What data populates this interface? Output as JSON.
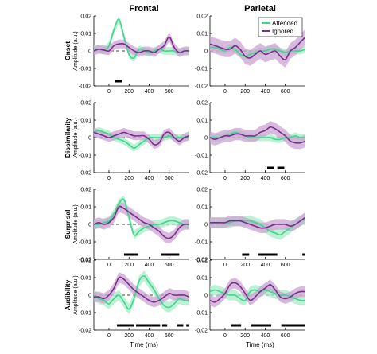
{
  "chart_data": {
    "type": "line",
    "columns": [
      "Frontal",
      "Parietal"
    ],
    "rows": [
      "Onset",
      "Dissimilarity",
      "Surprisal",
      "Audibility"
    ],
    "ylabel": "Amplitude (a.u.)",
    "xlabel": "Time (ms)",
    "xlim": [
      -150,
      800
    ],
    "ylim": [
      -0.02,
      0.02
    ],
    "xticks": [
      0,
      200,
      400,
      600
    ],
    "yticks": [
      -0.02,
      -0.01,
      0,
      0.01,
      0.02
    ],
    "ytick_labels": [
      "-0.02",
      "-0.01",
      "0",
      "0.01",
      "0.02"
    ],
    "legend": {
      "position": "top-right",
      "panel": "Parietal-Onset",
      "entries": [
        {
          "name": "Attended",
          "color": "#3dd68c"
        },
        {
          "name": "Ignored",
          "color": "#7b2d8e"
        }
      ]
    },
    "colors": {
      "attended": "#3dd68c",
      "ignored": "#7b2d8e",
      "attended_band": "#a6ecc8",
      "ignored_band": "#c9a3d2"
    },
    "panels": [
      {
        "row": "Onset",
        "col": "Frontal",
        "series": [
          {
            "name": "Attended",
            "x": [
              -150,
              -100,
              -50,
              0,
              50,
              100,
              150,
              200,
              250,
              300,
              350,
              400,
              450,
              500,
              550,
              600,
              650,
              700,
              750,
              800
            ],
            "y": [
              0.001,
              0.001,
              0.0005,
              0.003,
              0.012,
              0.018,
              0.008,
              -0.002,
              -0.004,
              0.001,
              0.0,
              -0.001,
              0.0,
              0.001,
              0.0,
              0.0,
              0.0,
              -0.001,
              0.0,
              0.0
            ],
            "band": 0.0022
          },
          {
            "name": "Ignored",
            "x": [
              -150,
              -100,
              -50,
              0,
              50,
              100,
              150,
              200,
              250,
              300,
              350,
              400,
              450,
              500,
              550,
              600,
              650,
              700,
              750,
              800
            ],
            "y": [
              0.0,
              0.001,
              0.0005,
              0.0,
              0.003,
              0.004,
              0.004,
              0.002,
              0.0,
              -0.001,
              0.0,
              0.0,
              -0.001,
              0.001,
              0.003,
              0.008,
              0.002,
              -0.001,
              0.0,
              0.0
            ],
            "band": 0.0025
          }
        ],
        "sig": [
          [
            60,
            130
          ]
        ]
      },
      {
        "row": "Onset",
        "col": "Parietal",
        "series": [
          {
            "name": "Attended",
            "x": [
              -150,
              -100,
              -50,
              0,
              50,
              100,
              150,
              200,
              250,
              300,
              350,
              400,
              450,
              500,
              550,
              600,
              650,
              700,
              750,
              800
            ],
            "y": [
              0.002,
              0.002,
              0.001,
              0.0,
              0.002,
              0.001,
              -0.002,
              -0.003,
              -0.002,
              -0.001,
              0.0,
              0.0,
              0.001,
              0.001,
              0.0,
              -0.001,
              0.0,
              0.0,
              0.0,
              0.001
            ],
            "band": 0.002
          },
          {
            "name": "Ignored",
            "x": [
              -150,
              -100,
              -50,
              0,
              50,
              100,
              150,
              200,
              250,
              300,
              350,
              400,
              450,
              500,
              550,
              600,
              650,
              700,
              750,
              800
            ],
            "y": [
              0.004,
              0.003,
              0.002,
              0.001,
              0.001,
              0.003,
              0.001,
              -0.003,
              -0.004,
              -0.002,
              0.0,
              -0.002,
              -0.001,
              0.0,
              -0.003,
              -0.005,
              0.0,
              0.002,
              0.005,
              0.008
            ],
            "band": 0.0045
          }
        ],
        "sig": []
      },
      {
        "row": "Dissimilarity",
        "col": "Frontal",
        "series": [
          {
            "name": "Attended",
            "x": [
              -150,
              -100,
              -50,
              0,
              50,
              100,
              150,
              200,
              250,
              300,
              350,
              400,
              450,
              500,
              550,
              600,
              650,
              700,
              750,
              800
            ],
            "y": [
              0.003,
              0.004,
              0.003,
              0.002,
              0.0,
              -0.001,
              -0.002,
              -0.004,
              -0.006,
              -0.004,
              -0.002,
              0.0,
              0.0,
              0.0,
              0.0,
              0.001,
              0.0,
              0.0,
              0.0,
              0.0
            ],
            "band": 0.002
          },
          {
            "name": "Ignored",
            "x": [
              -150,
              -100,
              -50,
              0,
              50,
              100,
              150,
              200,
              250,
              300,
              350,
              400,
              450,
              500,
              550,
              600,
              650,
              700,
              750,
              800
            ],
            "y": [
              0.003,
              0.002,
              0.001,
              0.0,
              0.001,
              0.002,
              0.003,
              0.002,
              0.001,
              0.001,
              0.001,
              -0.001,
              -0.004,
              -0.003,
              0.002,
              0.003,
              0.0,
              -0.002,
              0.0,
              0.001
            ],
            "band": 0.0025
          }
        ],
        "sig": []
      },
      {
        "row": "Dissimilarity",
        "col": "Parietal",
        "series": [
          {
            "name": "Attended",
            "x": [
              -150,
              -100,
              -50,
              0,
              50,
              100,
              150,
              200,
              250,
              300,
              350,
              400,
              450,
              500,
              550,
              600,
              650,
              700,
              750,
              800
            ],
            "y": [
              0.0,
              0.0,
              0.0,
              0.001,
              0.002,
              0.003,
              0.002,
              0.001,
              0.0,
              0.0,
              0.0,
              0.0,
              0.0,
              -0.001,
              -0.001,
              0.0,
              0.0,
              0.001,
              0.0,
              0.0
            ],
            "band": 0.002
          },
          {
            "name": "Ignored",
            "x": [
              -150,
              -100,
              -50,
              0,
              50,
              100,
              150,
              200,
              250,
              300,
              350,
              400,
              450,
              500,
              550,
              600,
              650,
              700,
              750,
              800
            ],
            "y": [
              0.0,
              -0.001,
              0.0,
              0.001,
              0.001,
              0.002,
              0.002,
              0.001,
              0.001,
              0.001,
              0.003,
              0.004,
              0.006,
              0.005,
              0.003,
              0.001,
              -0.002,
              -0.003,
              -0.003,
              -0.002
            ],
            "band": 0.0035
          }
        ],
        "sig": [
          [
            420,
            490
          ],
          [
            520,
            590
          ]
        ]
      },
      {
        "row": "Surprisal",
        "col": "Frontal",
        "series": [
          {
            "name": "Attended",
            "x": [
              -150,
              -100,
              -50,
              0,
              50,
              100,
              150,
              200,
              250,
              300,
              350,
              400,
              450,
              500,
              550,
              600,
              650,
              700,
              750,
              800
            ],
            "y": [
              0.0,
              0.0,
              0.001,
              0.002,
              0.006,
              0.012,
              0.014,
              0.004,
              -0.006,
              -0.004,
              -0.002,
              -0.001,
              0.0,
              0.0,
              0.001,
              0.002,
              0.002,
              0.001,
              0.0,
              0.0
            ],
            "band": 0.0025
          },
          {
            "name": "Ignored",
            "x": [
              -150,
              -100,
              -50,
              0,
              50,
              100,
              150,
              200,
              250,
              300,
              350,
              400,
              450,
              500,
              550,
              600,
              650,
              700,
              750,
              800
            ],
            "y": [
              0.0,
              0.001,
              0.0,
              0.001,
              0.004,
              0.01,
              0.009,
              0.007,
              0.005,
              0.003,
              0.001,
              0.0,
              -0.002,
              -0.004,
              -0.007,
              -0.008,
              -0.006,
              -0.002,
              0.0,
              0.0
            ],
            "band": 0.003
          }
        ],
        "sig": [
          [
            150,
            290
          ],
          [
            520,
            700
          ]
        ]
      },
      {
        "row": "Surprisal",
        "col": "Parietal",
        "series": [
          {
            "name": "Attended",
            "x": [
              -150,
              -100,
              -50,
              0,
              50,
              100,
              150,
              200,
              250,
              300,
              350,
              400,
              450,
              500,
              550,
              600,
              650,
              700,
              750,
              800
            ],
            "y": [
              0.001,
              0.001,
              0.001,
              0.001,
              0.001,
              0.002,
              0.002,
              0.002,
              0.002,
              0.001,
              0.0,
              -0.002,
              -0.004,
              -0.005,
              -0.006,
              -0.004,
              -0.002,
              0.0,
              0.002,
              0.003
            ],
            "band": 0.003
          },
          {
            "name": "Ignored",
            "x": [
              -150,
              -100,
              -50,
              0,
              50,
              100,
              150,
              200,
              250,
              300,
              350,
              400,
              450,
              500,
              550,
              600,
              650,
              700,
              750,
              800
            ],
            "y": [
              0.001,
              0.001,
              0.001,
              0.001,
              0.002,
              0.002,
              0.002,
              0.001,
              0.0,
              -0.001,
              -0.002,
              -0.002,
              -0.001,
              0.0,
              0.0,
              0.0,
              -0.001,
              0.0,
              0.002,
              0.004
            ],
            "band": 0.003
          }
        ],
        "sig": [
          [
            170,
            240
          ],
          [
            330,
            520
          ],
          [
            770,
            800
          ]
        ]
      },
      {
        "row": "Audibility",
        "col": "Frontal",
        "series": [
          {
            "name": "Attended",
            "x": [
              -150,
              -100,
              -50,
              0,
              50,
              100,
              150,
              200,
              250,
              300,
              350,
              400,
              450,
              500,
              550,
              600,
              650,
              700,
              750,
              800
            ],
            "y": [
              0.0,
              -0.002,
              -0.003,
              -0.005,
              -0.002,
              0.0,
              -0.004,
              -0.008,
              -0.002,
              0.008,
              0.011,
              0.007,
              0.003,
              -0.002,
              -0.006,
              -0.007,
              -0.005,
              -0.002,
              -0.003,
              -0.003
            ],
            "band": 0.003
          },
          {
            "name": "Ignored",
            "x": [
              -150,
              -100,
              -50,
              0,
              50,
              100,
              150,
              200,
              250,
              300,
              350,
              400,
              450,
              500,
              550,
              600,
              650,
              700,
              750,
              800
            ],
            "y": [
              -0.001,
              -0.001,
              -0.002,
              0.0,
              0.004,
              0.01,
              0.009,
              0.006,
              0.003,
              0.001,
              -0.001,
              -0.003,
              -0.004,
              -0.003,
              -0.001,
              0.001,
              0.0,
              0.0,
              0.0,
              -0.001
            ],
            "band": 0.003
          }
        ],
        "sig": [
          [
            80,
            250
          ],
          [
            270,
            510
          ],
          [
            530,
            580
          ],
          [
            680,
            740
          ],
          [
            770,
            800
          ]
        ]
      },
      {
        "row": "Audibility",
        "col": "Parietal",
        "series": [
          {
            "name": "Attended",
            "x": [
              -150,
              -100,
              -50,
              0,
              50,
              100,
              150,
              200,
              250,
              300,
              350,
              400,
              450,
              500,
              550,
              600,
              650,
              700,
              750,
              800
            ],
            "y": [
              0.002,
              0.003,
              0.002,
              0.001,
              0.0,
              0.0,
              -0.002,
              -0.003,
              0.002,
              0.003,
              0.002,
              0.003,
              0.002,
              0.001,
              0.0,
              0.0,
              -0.001,
              -0.002,
              -0.003,
              -0.003
            ],
            "band": 0.003
          },
          {
            "name": "Ignored",
            "x": [
              -150,
              -100,
              -50,
              0,
              50,
              100,
              150,
              200,
              250,
              300,
              350,
              400,
              450,
              500,
              550,
              600,
              650,
              700,
              750,
              800
            ],
            "y": [
              -0.003,
              -0.004,
              -0.002,
              0.001,
              0.006,
              0.007,
              0.005,
              0.001,
              -0.003,
              -0.001,
              0.002,
              0.004,
              0.006,
              0.003,
              -0.001,
              -0.002,
              -0.001,
              0.001,
              0.002,
              0.002
            ],
            "band": 0.003
          }
        ],
        "sig": [
          [
            60,
            160
          ],
          [
            260,
            460
          ],
          [
            560,
            800
          ]
        ]
      }
    ]
  }
}
